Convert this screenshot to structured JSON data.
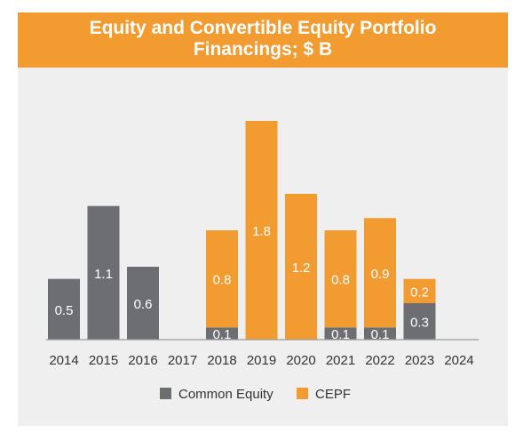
{
  "header": {
    "title_line1": "Equity and Convertible Equity Portfolio",
    "title_line2": "Financings; $ B"
  },
  "colors": {
    "header_bg": "#F29B30",
    "panel_bg": "#EFEFEF",
    "common_equity": "#6D6E71",
    "cepf": "#F29B30",
    "label_text": "#ffffff",
    "axis_text": "#333333"
  },
  "chart_data": {
    "type": "bar",
    "stacked": true,
    "title": "Equity and Convertible Equity Portfolio Financings; $ B",
    "categories": [
      "2014",
      "2015",
      "2016",
      "2017",
      "2018",
      "2019",
      "2020",
      "2021",
      "2022",
      "2023",
      "2024"
    ],
    "series": [
      {
        "name": "Common Equity",
        "color": "#6D6E71",
        "values": [
          0.5,
          1.1,
          0.6,
          0,
          0.1,
          0,
          0,
          0.1,
          0.1,
          0.3,
          0
        ],
        "labels": [
          "0.5",
          "1.1",
          "0.6",
          "",
          "0.1",
          "",
          "",
          "0.1",
          "0.1",
          "0.3",
          ""
        ]
      },
      {
        "name": "CEPF",
        "color": "#F29B30",
        "values": [
          0,
          0,
          0,
          0,
          0.8,
          1.8,
          1.2,
          0.8,
          0.9,
          0.2,
          0
        ],
        "labels": [
          "",
          "",
          "",
          "",
          "0.8",
          "1.8",
          "1.2",
          "0.8",
          "0.9",
          "0.2",
          ""
        ]
      }
    ],
    "ylim": [
      0,
      1.8
    ],
    "grid": false,
    "legend_position": "bottom"
  }
}
